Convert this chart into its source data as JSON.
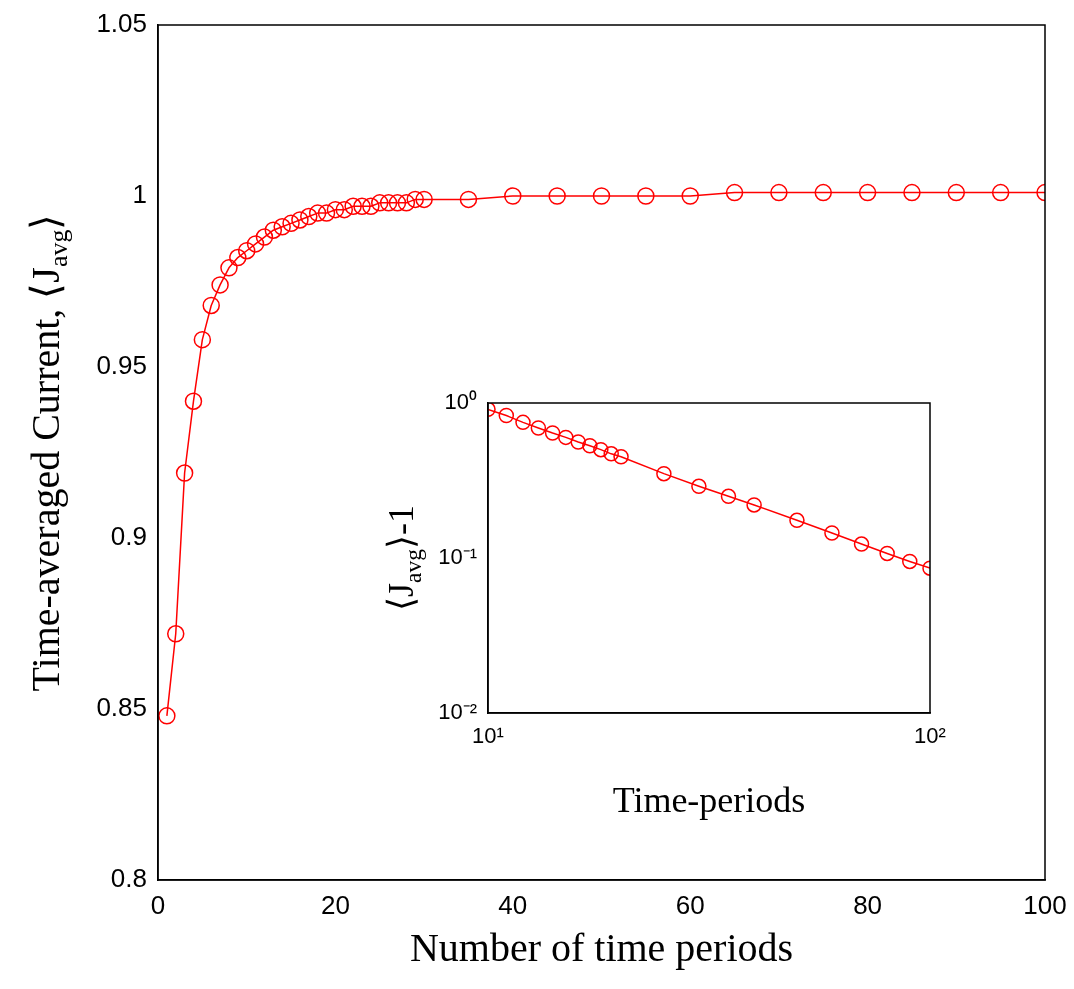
{
  "chart_data": [
    {
      "type": "line",
      "xlabel": "Number of time periods",
      "ylabel": "Time-averaged Current, ⟨J$_{avg}$⟩",
      "xlim": [
        0,
        100
      ],
      "ylim": [
        0.8,
        1.05
      ],
      "xticks": [
        0,
        20,
        40,
        60,
        80,
        100
      ],
      "yticks": [
        0.8,
        0.85,
        0.9,
        0.95,
        1,
        1.05
      ],
      "marker": "circle",
      "line_style": "solid",
      "x": [
        1,
        2,
        3,
        4,
        5,
        6,
        7,
        8,
        9,
        10,
        11,
        12,
        13,
        14,
        15,
        16,
        17,
        18,
        19,
        20,
        21,
        22,
        23,
        24,
        25,
        26,
        27,
        28,
        29,
        30,
        35,
        40,
        45,
        50,
        55,
        60,
        65,
        70,
        75,
        80,
        85,
        90,
        95,
        100
      ],
      "series": [
        {
          "color": "#ff0000",
          "values": [
            0.848,
            0.872,
            0.919,
            0.94,
            0.958,
            0.968,
            0.974,
            0.979,
            0.982,
            0.984,
            0.986,
            0.988,
            0.99,
            0.991,
            0.992,
            0.993,
            0.994,
            0.995,
            0.995,
            0.996,
            0.996,
            0.997,
            0.997,
            0.997,
            0.998,
            0.998,
            0.998,
            0.998,
            0.999,
            0.999,
            0.999,
            1.0,
            1.0,
            1.0,
            1.0,
            1.0,
            1.001,
            1.001,
            1.001,
            1.001,
            1.001,
            1.001,
            1.001,
            1.001
          ]
        }
      ]
    },
    {
      "type": "line",
      "xlabel": "Time-periods",
      "ylabel": "⟨J$_{avg}$⟩-1",
      "log": "xy",
      "xlim": [
        10,
        100
      ],
      "ylim": [
        0.01,
        1
      ],
      "xticks": [
        {
          "value": 10,
          "label": "10¹"
        },
        {
          "value": 100,
          "label": "10²"
        }
      ],
      "yticks": [
        {
          "value": 0.01,
          "label": "10⁻²"
        },
        {
          "value": 0.1,
          "label": "10⁻¹"
        },
        {
          "value": 1,
          "label": "10⁰"
        }
      ],
      "marker": "circle",
      "line_style": "solid",
      "x": [
        10,
        11,
        12,
        13,
        14,
        15,
        16,
        17,
        18,
        19,
        20,
        25,
        30,
        35,
        40,
        50,
        60,
        70,
        80,
        90,
        100
      ],
      "series": [
        {
          "color": "#ff0000",
          "values": [
            0.91,
            0.83,
            0.75,
            0.69,
            0.64,
            0.6,
            0.56,
            0.53,
            0.5,
            0.47,
            0.45,
            0.35,
            0.29,
            0.25,
            0.22,
            0.175,
            0.145,
            0.123,
            0.107,
            0.095,
            0.086
          ]
        }
      ]
    }
  ]
}
